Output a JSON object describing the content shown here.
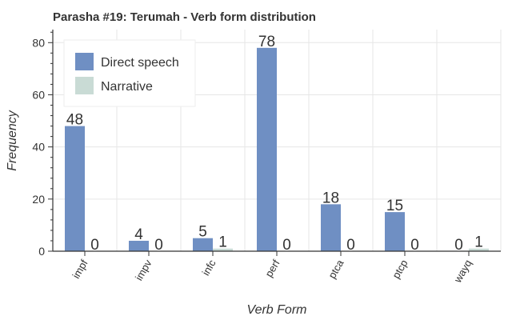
{
  "chart_data": {
    "type": "bar",
    "title": "Parasha #19: Terumah - Verb form distribution",
    "xlabel": "Verb Form",
    "ylabel": "Frequency",
    "categories": [
      "impf",
      "impv",
      "infc",
      "perf",
      "ptca",
      "ptcp",
      "wayq"
    ],
    "series": [
      {
        "name": "Direct speech",
        "values": [
          48,
          4,
          5,
          78,
          18,
          15,
          0
        ],
        "color": "#6f8fc3"
      },
      {
        "name": "Narrative",
        "values": [
          0,
          0,
          1,
          0,
          0,
          0,
          1
        ],
        "color": "#c9dbd5"
      }
    ],
    "ylim": [
      0,
      85
    ],
    "yticks": [
      0,
      20,
      40,
      60,
      80
    ],
    "grid": true,
    "legend": "top-left",
    "data_labels": true
  }
}
